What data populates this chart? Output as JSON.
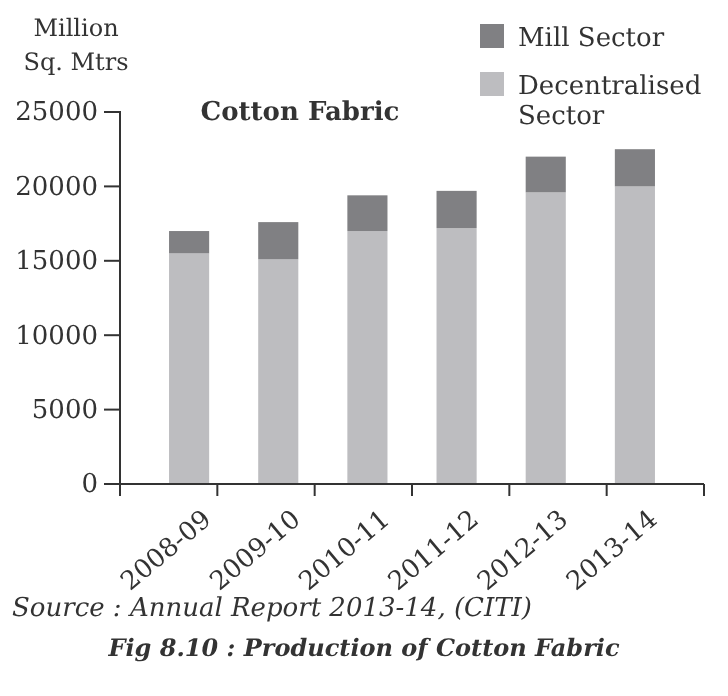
{
  "chart_data": {
    "type": "bar",
    "title": "Cotton Fabric",
    "ylabel": "Million Sq. Mtrs",
    "categories": [
      "2008-09",
      "2009-10",
      "2010-11",
      "2011-12",
      "2012-13",
      "2013-14"
    ],
    "series": [
      {
        "name": "Decentralised Sector",
        "color": "#bdbdc0",
        "values": [
          15500,
          15100,
          17000,
          17200,
          19600,
          20000
        ]
      },
      {
        "name": "Mill Sector",
        "color": "#808083",
        "values": [
          1500,
          2500,
          2400,
          2500,
          2400,
          2500
        ]
      }
    ],
    "stacked": true,
    "ylim": [
      0,
      25000
    ],
    "yticks": [
      0,
      5000,
      10000,
      15000,
      20000,
      25000
    ],
    "grid": false,
    "legend": "top right",
    "annotations": [
      "Source : Annual Report 2013-14, (CITI)",
      "Fig 8.10 : Production of Cotton Fabric"
    ]
  }
}
